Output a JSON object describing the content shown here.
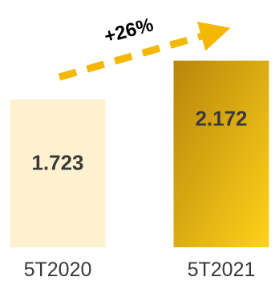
{
  "chart_data": {
    "type": "bar",
    "categories": [
      "5T2020",
      "5T2021"
    ],
    "values": [
      1.723,
      2.172
    ],
    "value_labels": [
      "1.723",
      "2.172"
    ],
    "growth_annotation": "+26%",
    "colors": {
      "bar_2020": "#fdf1cf",
      "bar_2021_top": "#b8860b",
      "bar_2021_bottom": "#ffd21a",
      "arrow": "#f5b800",
      "value_text": "#3a3a3a",
      "category_text": "#3a3a3a"
    }
  }
}
